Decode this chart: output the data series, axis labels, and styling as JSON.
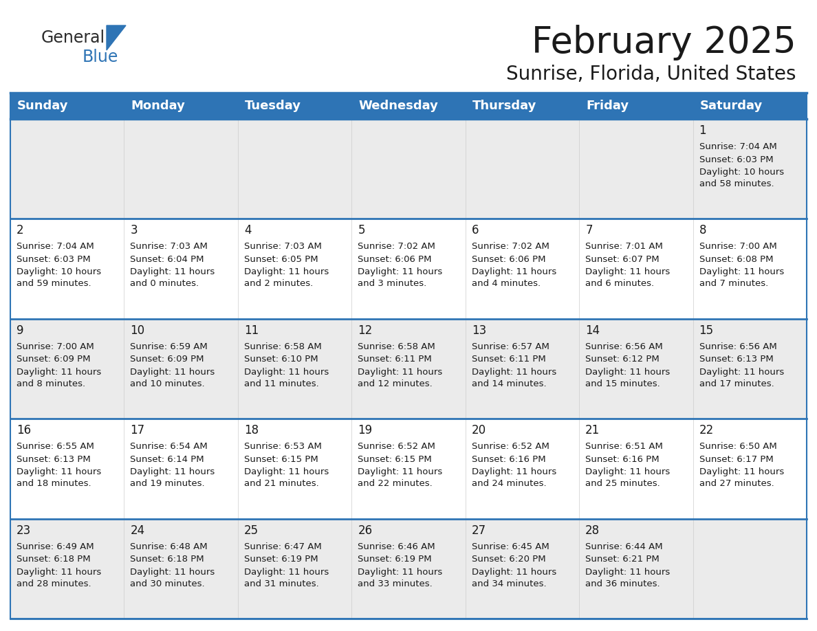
{
  "title": "February 2025",
  "subtitle": "Sunrise, Florida, United States",
  "header_color": "#2e74b5",
  "header_text_color": "#ffffff",
  "cell_bg_row0": "#ebebeb",
  "cell_bg_row1": "#ffffff",
  "cell_bg_row2": "#ebebeb",
  "cell_bg_row3": "#ffffff",
  "cell_bg_row4": "#ebebeb",
  "separator_color": "#2e74b5",
  "border_color": "#2e74b5",
  "day_headers": [
    "Sunday",
    "Monday",
    "Tuesday",
    "Wednesday",
    "Thursday",
    "Friday",
    "Saturday"
  ],
  "weeks": [
    [
      {
        "day": "",
        "sunrise": "",
        "sunset": "",
        "daylight": ""
      },
      {
        "day": "",
        "sunrise": "",
        "sunset": "",
        "daylight": ""
      },
      {
        "day": "",
        "sunrise": "",
        "sunset": "",
        "daylight": ""
      },
      {
        "day": "",
        "sunrise": "",
        "sunset": "",
        "daylight": ""
      },
      {
        "day": "",
        "sunrise": "",
        "sunset": "",
        "daylight": ""
      },
      {
        "day": "",
        "sunrise": "",
        "sunset": "",
        "daylight": ""
      },
      {
        "day": "1",
        "sunrise": "7:04 AM",
        "sunset": "6:03 PM",
        "daylight": "10 hours\nand 58 minutes."
      }
    ],
    [
      {
        "day": "2",
        "sunrise": "7:04 AM",
        "sunset": "6:03 PM",
        "daylight": "10 hours\nand 59 minutes."
      },
      {
        "day": "3",
        "sunrise": "7:03 AM",
        "sunset": "6:04 PM",
        "daylight": "11 hours\nand 0 minutes."
      },
      {
        "day": "4",
        "sunrise": "7:03 AM",
        "sunset": "6:05 PM",
        "daylight": "11 hours\nand 2 minutes."
      },
      {
        "day": "5",
        "sunrise": "7:02 AM",
        "sunset": "6:06 PM",
        "daylight": "11 hours\nand 3 minutes."
      },
      {
        "day": "6",
        "sunrise": "7:02 AM",
        "sunset": "6:06 PM",
        "daylight": "11 hours\nand 4 minutes."
      },
      {
        "day": "7",
        "sunrise": "7:01 AM",
        "sunset": "6:07 PM",
        "daylight": "11 hours\nand 6 minutes."
      },
      {
        "day": "8",
        "sunrise": "7:00 AM",
        "sunset": "6:08 PM",
        "daylight": "11 hours\nand 7 minutes."
      }
    ],
    [
      {
        "day": "9",
        "sunrise": "7:00 AM",
        "sunset": "6:09 PM",
        "daylight": "11 hours\nand 8 minutes."
      },
      {
        "day": "10",
        "sunrise": "6:59 AM",
        "sunset": "6:09 PM",
        "daylight": "11 hours\nand 10 minutes."
      },
      {
        "day": "11",
        "sunrise": "6:58 AM",
        "sunset": "6:10 PM",
        "daylight": "11 hours\nand 11 minutes."
      },
      {
        "day": "12",
        "sunrise": "6:58 AM",
        "sunset": "6:11 PM",
        "daylight": "11 hours\nand 12 minutes."
      },
      {
        "day": "13",
        "sunrise": "6:57 AM",
        "sunset": "6:11 PM",
        "daylight": "11 hours\nand 14 minutes."
      },
      {
        "day": "14",
        "sunrise": "6:56 AM",
        "sunset": "6:12 PM",
        "daylight": "11 hours\nand 15 minutes."
      },
      {
        "day": "15",
        "sunrise": "6:56 AM",
        "sunset": "6:13 PM",
        "daylight": "11 hours\nand 17 minutes."
      }
    ],
    [
      {
        "day": "16",
        "sunrise": "6:55 AM",
        "sunset": "6:13 PM",
        "daylight": "11 hours\nand 18 minutes."
      },
      {
        "day": "17",
        "sunrise": "6:54 AM",
        "sunset": "6:14 PM",
        "daylight": "11 hours\nand 19 minutes."
      },
      {
        "day": "18",
        "sunrise": "6:53 AM",
        "sunset": "6:15 PM",
        "daylight": "11 hours\nand 21 minutes."
      },
      {
        "day": "19",
        "sunrise": "6:52 AM",
        "sunset": "6:15 PM",
        "daylight": "11 hours\nand 22 minutes."
      },
      {
        "day": "20",
        "sunrise": "6:52 AM",
        "sunset": "6:16 PM",
        "daylight": "11 hours\nand 24 minutes."
      },
      {
        "day": "21",
        "sunrise": "6:51 AM",
        "sunset": "6:16 PM",
        "daylight": "11 hours\nand 25 minutes."
      },
      {
        "day": "22",
        "sunrise": "6:50 AM",
        "sunset": "6:17 PM",
        "daylight": "11 hours\nand 27 minutes."
      }
    ],
    [
      {
        "day": "23",
        "sunrise": "6:49 AM",
        "sunset": "6:18 PM",
        "daylight": "11 hours\nand 28 minutes."
      },
      {
        "day": "24",
        "sunrise": "6:48 AM",
        "sunset": "6:18 PM",
        "daylight": "11 hours\nand 30 minutes."
      },
      {
        "day": "25",
        "sunrise": "6:47 AM",
        "sunset": "6:19 PM",
        "daylight": "11 hours\nand 31 minutes."
      },
      {
        "day": "26",
        "sunrise": "6:46 AM",
        "sunset": "6:19 PM",
        "daylight": "11 hours\nand 33 minutes."
      },
      {
        "day": "27",
        "sunrise": "6:45 AM",
        "sunset": "6:20 PM",
        "daylight": "11 hours\nand 34 minutes."
      },
      {
        "day": "28",
        "sunrise": "6:44 AM",
        "sunset": "6:21 PM",
        "daylight": "11 hours\nand 36 minutes."
      },
      {
        "day": "",
        "sunrise": "",
        "sunset": "",
        "daylight": ""
      }
    ]
  ],
  "logo_general_color": "#2b2b2b",
  "logo_blue_color": "#2e74b5",
  "title_fontsize": 38,
  "subtitle_fontsize": 20,
  "header_fontsize": 13,
  "day_num_fontsize": 12,
  "cell_text_fontsize": 9.5
}
